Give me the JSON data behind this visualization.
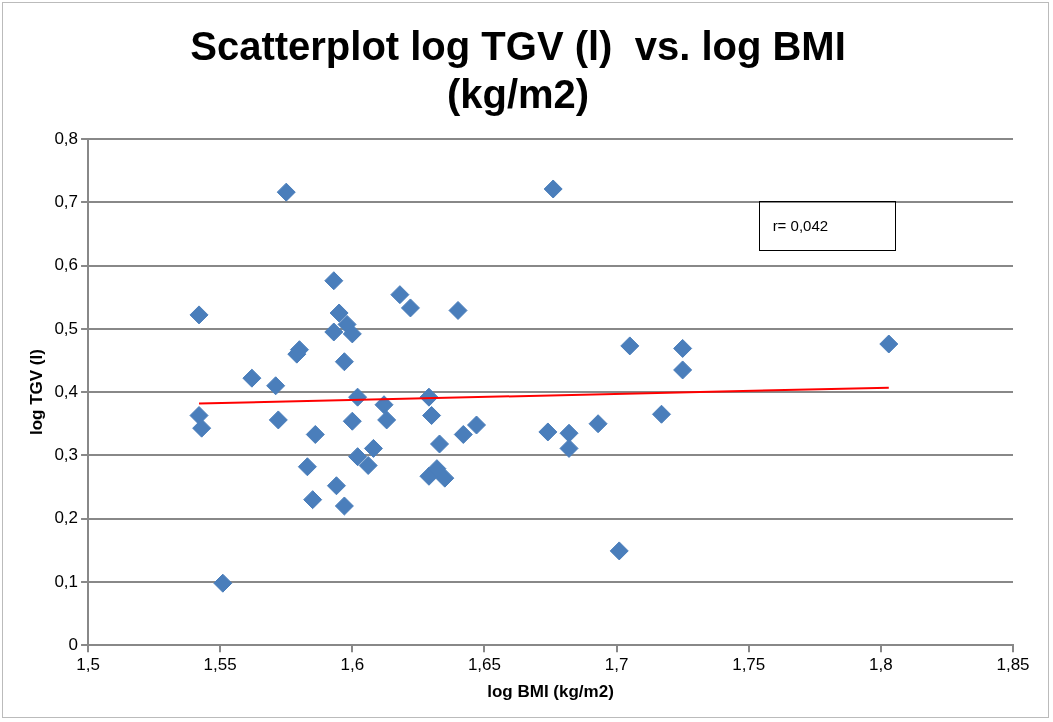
{
  "chart_data": {
    "type": "scatter",
    "title": "Scatterplot log TGV (l)  vs. log BMI (kg/m2)",
    "xlabel": "log BMI (kg/m2)",
    "ylabel": "log TGV (l)",
    "xlim": [
      1.5,
      1.85
    ],
    "xticks": [
      {
        "value": 1.5,
        "label": "1,5"
      },
      {
        "value": 1.55,
        "label": "1,55"
      },
      {
        "value": 1.6,
        "label": "1,6"
      },
      {
        "value": 1.65,
        "label": "1,65"
      },
      {
        "value": 1.7,
        "label": "1,7"
      },
      {
        "value": 1.75,
        "label": "1,75"
      },
      {
        "value": 1.8,
        "label": "1,8"
      },
      {
        "value": 1.85,
        "label": "1,85"
      }
    ],
    "ylim": [
      0,
      0.8
    ],
    "yticks": [
      0,
      {
        "value": 0.1,
        "label": "0,1"
      },
      {
        "value": 0.2,
        "label": "0,2"
      },
      {
        "value": 0.3,
        "label": "0,3"
      },
      {
        "value": 0.4,
        "label": "0,4"
      },
      {
        "value": 0.5,
        "label": "0,5"
      },
      {
        "value": 0.6,
        "label": "0,6"
      },
      {
        "value": 0.7,
        "label": "0,7"
      },
      {
        "value": 0.8,
        "label": "0,8"
      }
    ],
    "grid": "y",
    "legend": false,
    "annotations": [
      "r= 0,042"
    ],
    "series": [
      {
        "color": "#4a7ebb",
        "marker": "diamond",
        "x": [
          1.542,
          1.542,
          1.543,
          1.551,
          1.562,
          1.571,
          1.572,
          1.575,
          1.579,
          1.58,
          1.583,
          1.585,
          1.586,
          1.593,
          1.593,
          1.594,
          1.595,
          1.597,
          1.597,
          1.598,
          1.6,
          1.6,
          1.602,
          1.602,
          1.606,
          1.608,
          1.612,
          1.613,
          1.618,
          1.622,
          1.629,
          1.63,
          1.629,
          1.632,
          1.633,
          1.635,
          1.64,
          1.642,
          1.647,
          1.676,
          1.674,
          1.682,
          1.682,
          1.693,
          1.701,
          1.705,
          1.717,
          1.725,
          1.725,
          1.803
        ],
        "values": [
          0.522,
          0.363,
          0.343,
          0.098,
          0.422,
          0.41,
          0.356,
          0.716,
          0.46,
          0.467,
          0.282,
          0.23,
          0.333,
          0.576,
          0.495,
          0.252,
          0.525,
          0.448,
          0.22,
          0.507,
          0.492,
          0.354,
          0.298,
          0.392,
          0.284,
          0.311,
          0.38,
          0.356,
          0.554,
          0.533,
          0.392,
          0.363,
          0.267,
          0.279,
          0.318,
          0.264,
          0.529,
          0.333,
          0.348,
          0.721,
          0.337,
          0.335,
          0.311,
          0.35,
          0.149,
          0.473,
          0.365,
          0.469,
          0.435,
          0.476
        ]
      },
      {
        "type": "line",
        "color": "#ff0000",
        "marker": "none",
        "x": [
          1.542,
          1.803
        ],
        "values": [
          0.382,
          0.407
        ]
      }
    ]
  }
}
